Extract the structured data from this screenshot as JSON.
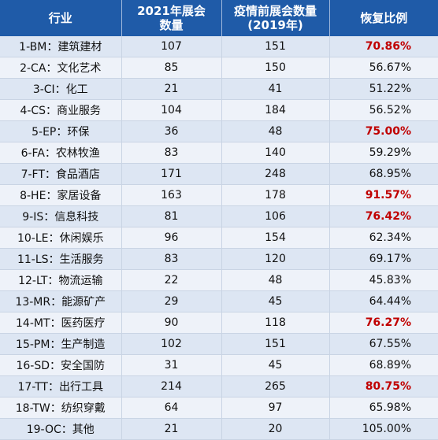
{
  "headers": {
    "industry": "行业",
    "count_2021_line1": "2021年展会",
    "count_2021_line2": "数量",
    "pre_line1": "疫情前展会数量",
    "pre_line2": "(2019年)",
    "ratio": "恢复比例"
  },
  "colors": {
    "header_bg": "#1f5ba8",
    "highlight": "#c00000"
  },
  "rows": [
    {
      "industry": "1-BM：建筑建材",
      "count_2021": "107",
      "count_2019": "151",
      "ratio": "70.86%",
      "highlight": true
    },
    {
      "industry": "2-CA：文化艺术",
      "count_2021": "85",
      "count_2019": "150",
      "ratio": "56.67%",
      "highlight": false
    },
    {
      "industry": "3-CI：化工",
      "count_2021": "21",
      "count_2019": "41",
      "ratio": "51.22%",
      "highlight": false
    },
    {
      "industry": "4-CS：商业服务",
      "count_2021": "104",
      "count_2019": "184",
      "ratio": "56.52%",
      "highlight": false
    },
    {
      "industry": "5-EP：环保",
      "count_2021": "36",
      "count_2019": "48",
      "ratio": "75.00%",
      "highlight": true
    },
    {
      "industry": "6-FA：农林牧渔",
      "count_2021": "83",
      "count_2019": "140",
      "ratio": "59.29%",
      "highlight": false
    },
    {
      "industry": "7-FT：食品酒店",
      "count_2021": "171",
      "count_2019": "248",
      "ratio": "68.95%",
      "highlight": false
    },
    {
      "industry": "8-HE：家居设备",
      "count_2021": "163",
      "count_2019": "178",
      "ratio": "91.57%",
      "highlight": true
    },
    {
      "industry": "9-IS：信息科技",
      "count_2021": "81",
      "count_2019": "106",
      "ratio": "76.42%",
      "highlight": true
    },
    {
      "industry": "10-LE：休闲娱乐",
      "count_2021": "96",
      "count_2019": "154",
      "ratio": "62.34%",
      "highlight": false
    },
    {
      "industry": "11-LS：生活服务",
      "count_2021": "83",
      "count_2019": "120",
      "ratio": "69.17%",
      "highlight": false
    },
    {
      "industry": "12-LT：物流运输",
      "count_2021": "22",
      "count_2019": "48",
      "ratio": "45.83%",
      "highlight": false
    },
    {
      "industry": "13-MR：能源矿产",
      "count_2021": "29",
      "count_2019": "45",
      "ratio": "64.44%",
      "highlight": false
    },
    {
      "industry": "14-MT：医药医疗",
      "count_2021": "90",
      "count_2019": "118",
      "ratio": "76.27%",
      "highlight": true
    },
    {
      "industry": "15-PM：生产制造",
      "count_2021": "102",
      "count_2019": "151",
      "ratio": "67.55%",
      "highlight": false
    },
    {
      "industry": "16-SD：安全国防",
      "count_2021": "31",
      "count_2019": "45",
      "ratio": "68.89%",
      "highlight": false
    },
    {
      "industry": "17-TT：出行工具",
      "count_2021": "214",
      "count_2019": "265",
      "ratio": "80.75%",
      "highlight": true
    },
    {
      "industry": "18-TW：纺织穿戴",
      "count_2021": "64",
      "count_2019": "97",
      "ratio": "65.98%",
      "highlight": false
    },
    {
      "industry": "19-OC：其他",
      "count_2021": "21",
      "count_2019": "20",
      "ratio": "105.00%",
      "highlight": false
    }
  ]
}
